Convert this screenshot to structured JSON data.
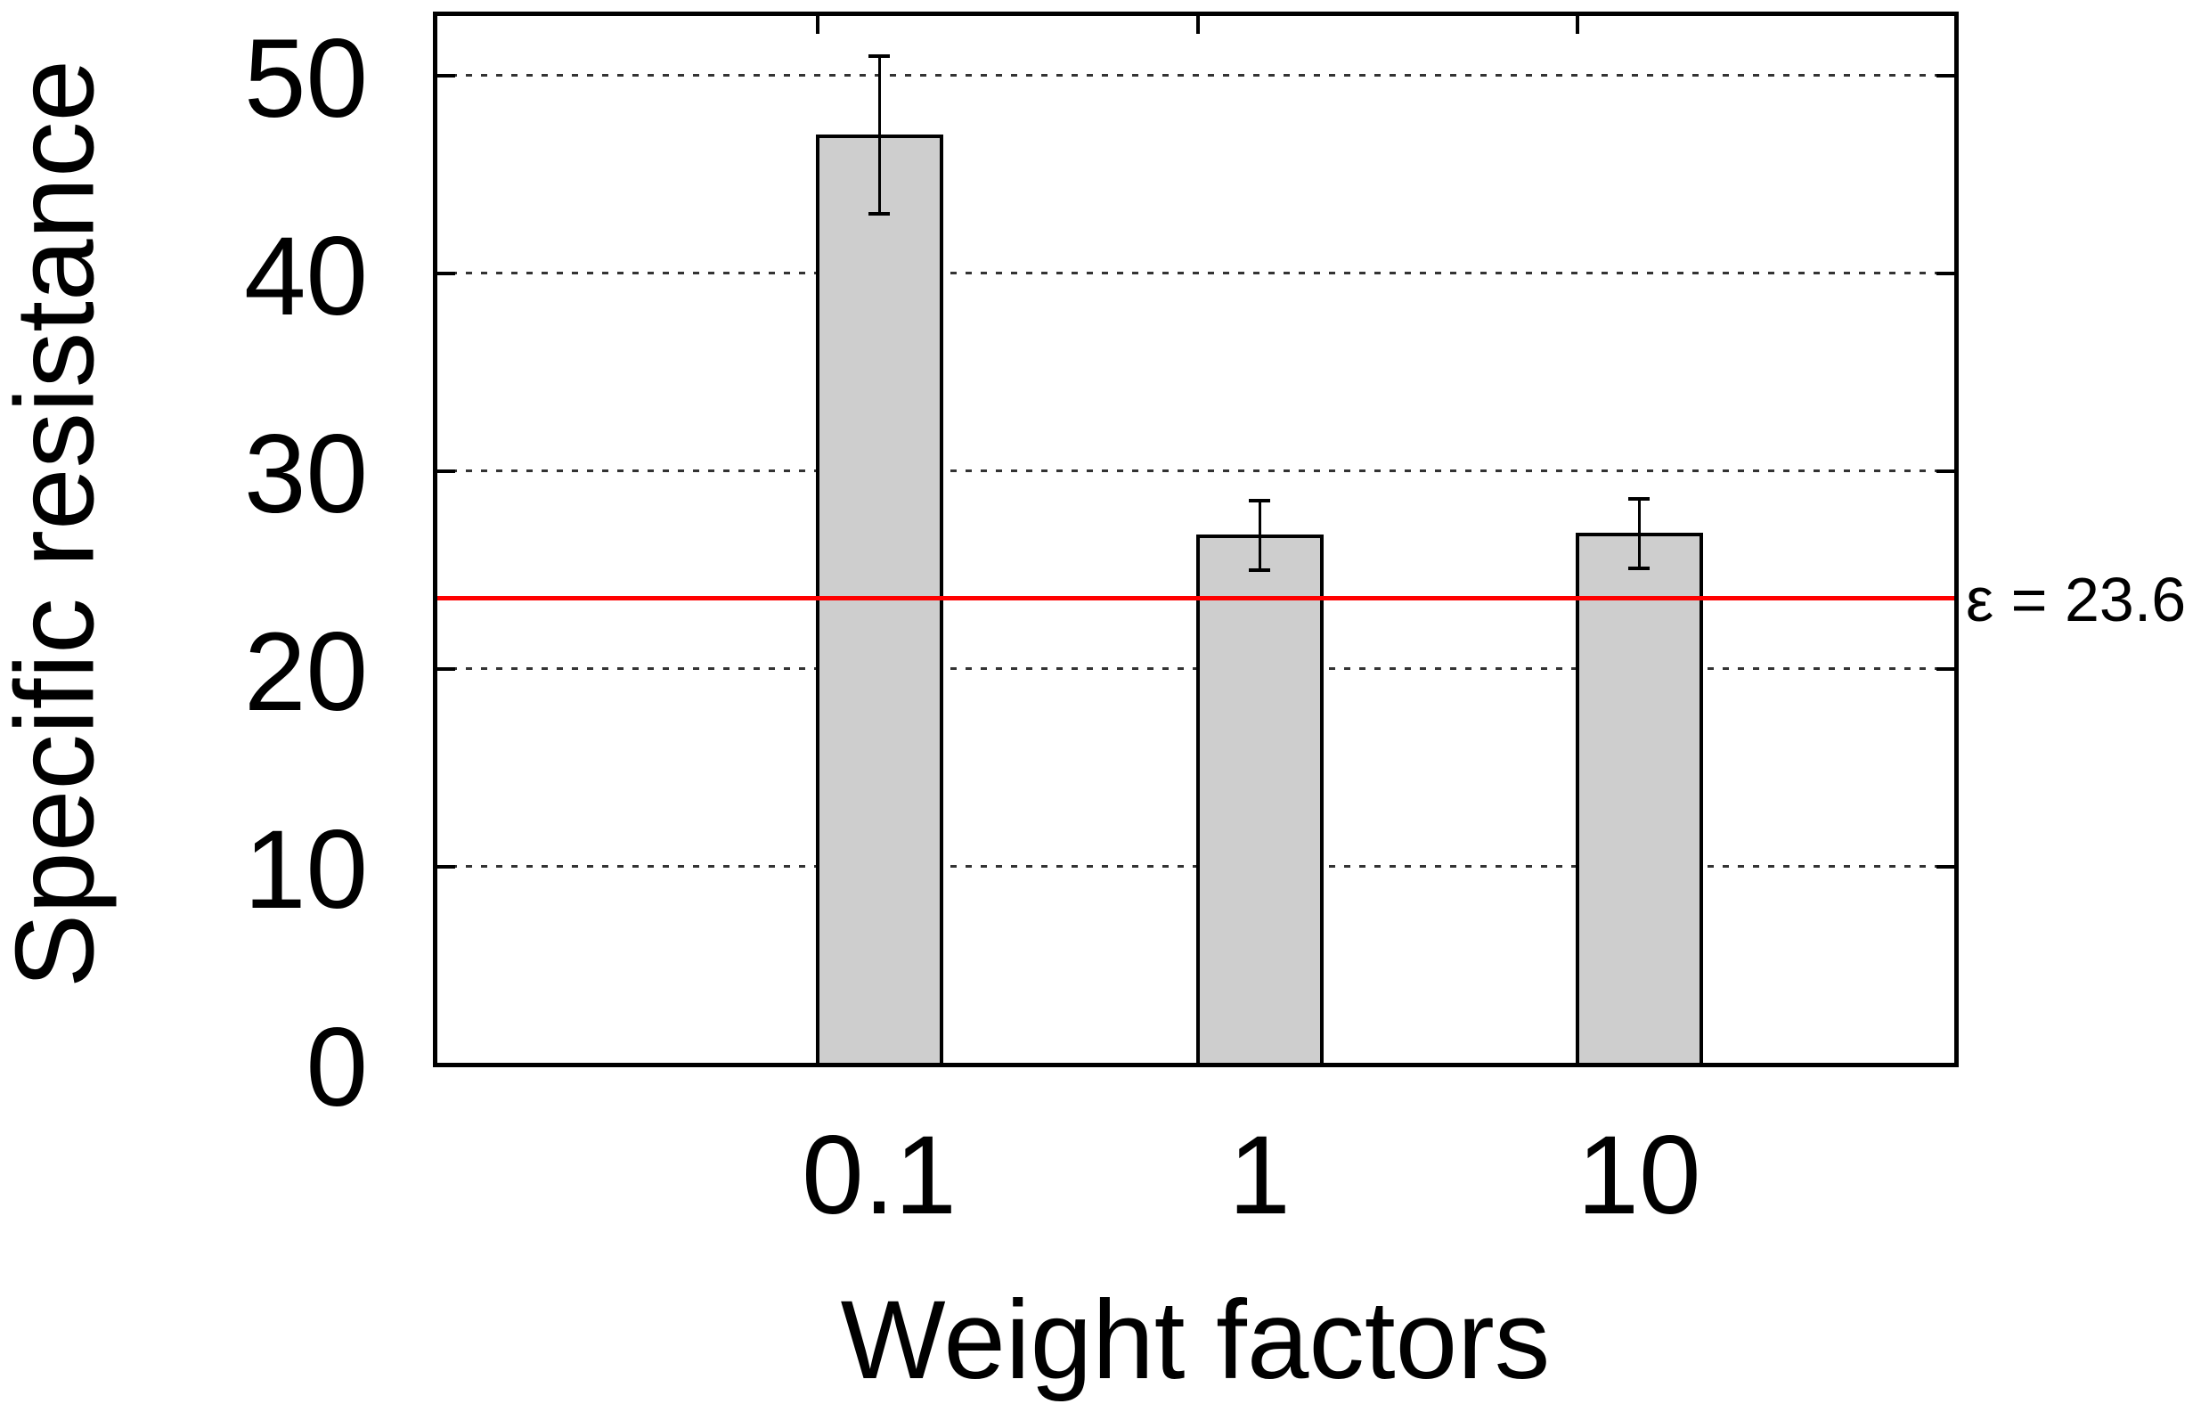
{
  "chart_data": {
    "type": "bar",
    "title": "",
    "categories": [
      "0.1",
      "1",
      "10"
    ],
    "values": [
      47.0,
      26.8,
      26.9
    ],
    "error_low": [
      43.0,
      25.0,
      25.1
    ],
    "error_high": [
      51.0,
      28.5,
      28.6
    ],
    "xlabel": "Weight factors",
    "ylabel": "Specific resistance",
    "yticks": [
      0,
      10,
      20,
      30,
      40,
      50
    ],
    "ylim": [
      0,
      53.1
    ],
    "grid": "horizontal dotted lines at y = 10,20,30,40,50",
    "legend": "none",
    "reference_line": {
      "value": 23.6,
      "label": "ε = 23.6",
      "color": "#ff0000"
    },
    "colors": {
      "bar_fill": "#cecece",
      "bar_border": "#000000",
      "axis": "#000000",
      "gridline": "#333333",
      "text": "#000000",
      "background": "#ffffff"
    }
  }
}
